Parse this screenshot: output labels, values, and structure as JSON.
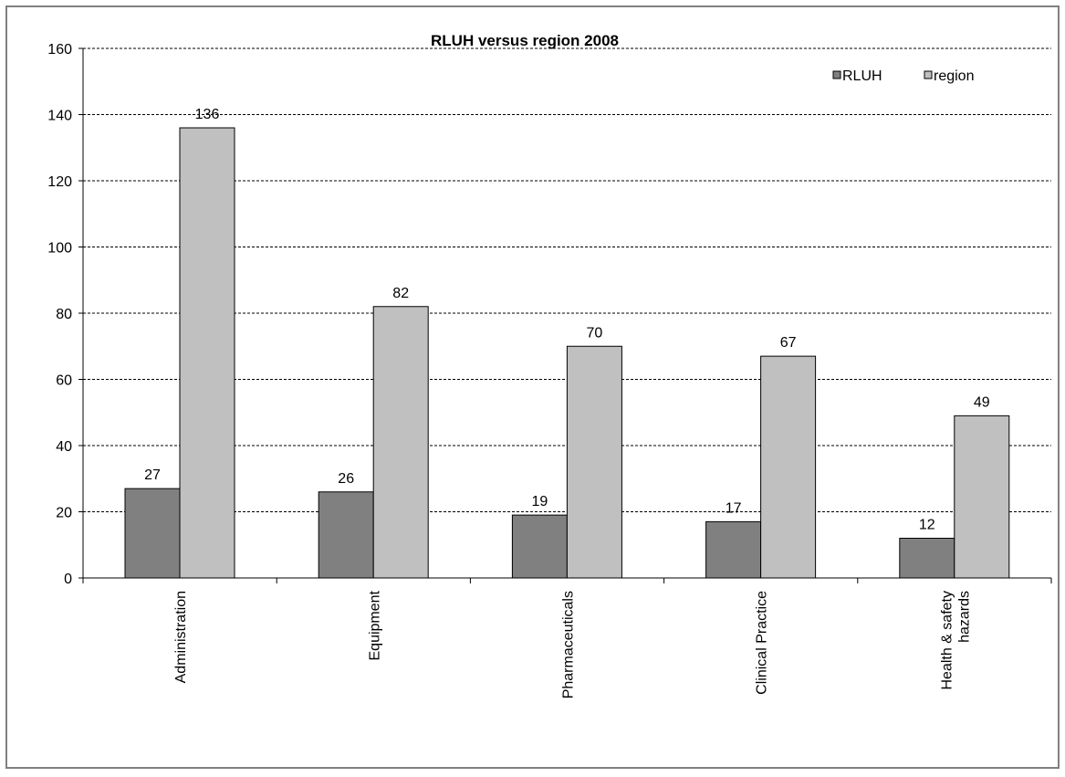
{
  "chart_data": {
    "type": "bar",
    "title": "RLUH versus region 2008",
    "xlabel": "",
    "ylabel": "",
    "categories": [
      "Administration",
      "Equipment",
      "Pharmaceuticals",
      "Clinical Practice",
      "Health & safety hazards"
    ],
    "category_lines": [
      [
        "Administration"
      ],
      [
        "Equipment"
      ],
      [
        "Pharmaceuticals"
      ],
      [
        "Clinical Practice"
      ],
      [
        "Health & safety",
        "hazards"
      ]
    ],
    "series": [
      {
        "name": "RLUH",
        "color": "#808080",
        "values": [
          27,
          26,
          19,
          17,
          12
        ]
      },
      {
        "name": "region",
        "color": "#c0c0c0",
        "values": [
          136,
          82,
          70,
          67,
          49
        ]
      }
    ],
    "ylim": [
      0,
      160
    ],
    "yticks": [
      0,
      20,
      40,
      60,
      80,
      100,
      120,
      140,
      160
    ],
    "grid": true,
    "legend": "top-right"
  }
}
